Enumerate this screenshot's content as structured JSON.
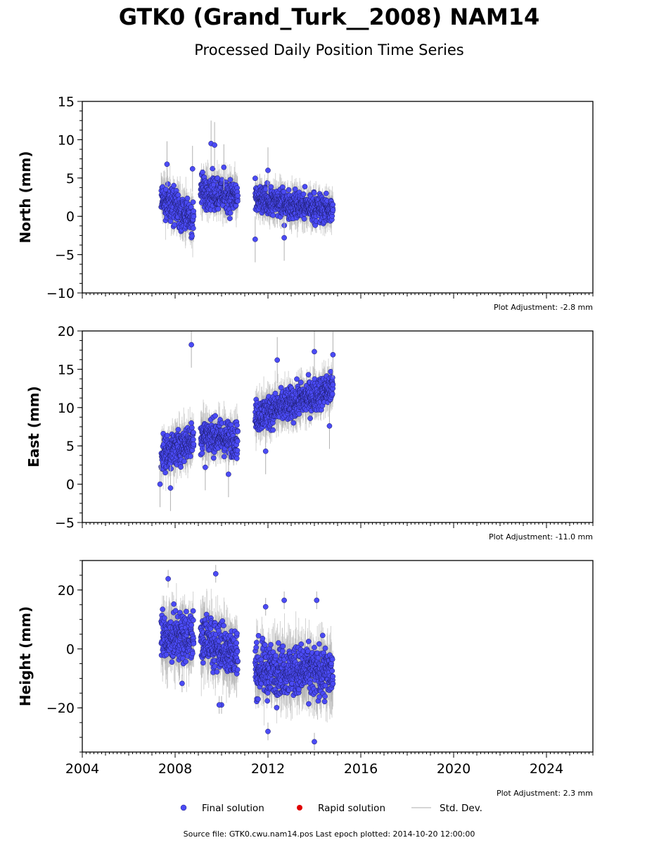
{
  "title": "GTK0 (Grand_Turk__2008) NAM14",
  "subtitle": "Processed Daily Position Time Series",
  "footer": "Source file: GTK0.cwu.nam14.pos  Last epoch plotted: 2014-10-20 12:00:00",
  "legend": {
    "final": "Final solution",
    "rapid": "Rapid solution",
    "std": "Std. Dev."
  },
  "colors": {
    "final": "#4b4bf5",
    "rapid": "#e00000",
    "std": "#b0b0b0"
  },
  "chart_data": [
    {
      "type": "scatter",
      "ylabel": "North (mm)",
      "adjustment": "Plot Adjustment: -2.8 mm",
      "xlim": [
        2004,
        2026
      ],
      "ylim": [
        -10,
        15
      ],
      "yticks": [
        -10,
        -5,
        0,
        5,
        10,
        15
      ],
      "ytick_labels": [
        "−10",
        "−5",
        "0",
        "5",
        "10",
        "15"
      ],
      "series": [
        {
          "name": "Final solution",
          "segments": [
            {
              "x": [
                2007.4,
                2008.8
              ],
              "mean": [
                2.5,
                -0.5
              ],
              "spread": 1.6
            },
            {
              "x": [
                2009.1,
                2010.7
              ],
              "mean": [
                3.5,
                2.5
              ],
              "spread": 1.5
            },
            {
              "x": [
                2011.45,
                2014.8
              ],
              "mean": [
                2.2,
                0.8
              ],
              "spread": 1.3
            }
          ]
        }
      ],
      "outliers": [
        {
          "x": 2009.55,
          "y": 9.5
        },
        {
          "x": 2009.7,
          "y": 9.3
        },
        {
          "x": 2007.65,
          "y": 6.8
        },
        {
          "x": 2008.75,
          "y": 6.2
        },
        {
          "x": 2011.45,
          "y": -3.0
        },
        {
          "x": 2012.7,
          "y": -2.8
        },
        {
          "x": 2012.0,
          "y": 6.0
        },
        {
          "x": 2010.1,
          "y": 6.4
        }
      ]
    },
    {
      "type": "scatter",
      "ylabel": "East (mm)",
      "adjustment": "Plot Adjustment: -11.0 mm",
      "xlim": [
        2004,
        2026
      ],
      "ylim": [
        -5,
        20
      ],
      "yticks": [
        -5,
        0,
        5,
        10,
        15,
        20
      ],
      "ytick_labels": [
        "−5",
        "0",
        "5",
        "10",
        "15",
        "20"
      ],
      "series": [
        {
          "name": "Final solution",
          "segments": [
            {
              "x": [
                2007.4,
                2008.8
              ],
              "mean": [
                3.8,
                5.8
              ],
              "spread": 1.6
            },
            {
              "x": [
                2009.1,
                2010.7
              ],
              "mean": [
                6.5,
                5.8
              ],
              "spread": 1.6
            },
            {
              "x": [
                2011.45,
                2014.8
              ],
              "mean": [
                8.8,
                12.5
              ],
              "spread": 1.5
            }
          ]
        }
      ],
      "outliers": [
        {
          "x": 2008.7,
          "y": 18.2
        },
        {
          "x": 2007.35,
          "y": 0.0
        },
        {
          "x": 2007.8,
          "y": -0.5
        },
        {
          "x": 2011.9,
          "y": 4.3
        },
        {
          "x": 2014.0,
          "y": 17.3
        },
        {
          "x": 2012.4,
          "y": 16.2
        },
        {
          "x": 2014.8,
          "y": 16.9
        },
        {
          "x": 2014.65,
          "y": 7.6
        },
        {
          "x": 2009.3,
          "y": 2.2
        },
        {
          "x": 2010.3,
          "y": 1.3
        }
      ]
    },
    {
      "type": "scatter",
      "ylabel": "Height (mm)",
      "adjustment": "Plot Adjustment: 2.3 mm",
      "xlim": [
        2004,
        2026
      ],
      "ylim": [
        -35,
        30
      ],
      "yticks": [
        -20,
        0,
        20
      ],
      "ytick_labels": [
        "−20",
        "0",
        "20"
      ],
      "xticks": [
        2004,
        2008,
        2012,
        2016,
        2020,
        2024
      ],
      "xtick_labels": [
        "2004",
        "2008",
        "2012",
        "2016",
        "2020",
        "2024"
      ],
      "series": [
        {
          "name": "Final solution",
          "segments": [
            {
              "x": [
                2007.4,
                2008.8
              ],
              "mean": [
                4.0,
                4.0
              ],
              "spread": 6.0
            },
            {
              "x": [
                2009.1,
                2010.7
              ],
              "mean": [
                4.0,
                -2.0
              ],
              "spread": 6.0
            },
            {
              "x": [
                2011.45,
                2014.8
              ],
              "mean": [
                -7.0,
                -8.0
              ],
              "spread": 6.0
            }
          ]
        }
      ],
      "outliers": [
        {
          "x": 2009.75,
          "y": 25.5
        },
        {
          "x": 2007.7,
          "y": 23.8
        },
        {
          "x": 2012.0,
          "y": -28.0
        },
        {
          "x": 2014.0,
          "y": -31.5
        },
        {
          "x": 2014.1,
          "y": 16.5
        },
        {
          "x": 2012.7,
          "y": 16.5
        },
        {
          "x": 2011.9,
          "y": 14.3
        },
        {
          "x": 2010.0,
          "y": -19.0
        },
        {
          "x": 2009.9,
          "y": -19.0
        },
        {
          "x": 2008.3,
          "y": -11.7
        }
      ]
    }
  ]
}
